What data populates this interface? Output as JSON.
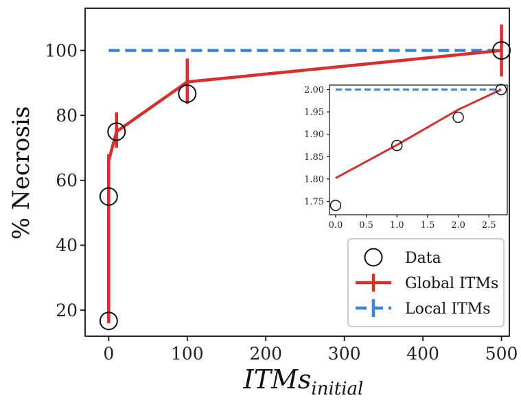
{
  "chart_data": [
    {
      "type": "line",
      "xlabel_main": "ITMs",
      "xlabel_sub": "initial",
      "ylabel": "% Necrosis",
      "xlim": [
        -30,
        510
      ],
      "ylim": [
        12,
        113
      ],
      "xticks": [
        0,
        100,
        200,
        300,
        400,
        500
      ],
      "yticks": [
        20,
        40,
        60,
        80,
        100
      ],
      "xtick_labels": [
        "0",
        "100",
        "200",
        "300",
        "400",
        "500"
      ],
      "ytick_labels": [
        "20",
        "40",
        "60",
        "80",
        "100"
      ],
      "legend_position": "lower-right",
      "series": [
        {
          "name": "Data",
          "style": "open-circle",
          "color": "#111111",
          "points": [
            [
              0,
              16.7
            ],
            [
              0,
              55
            ],
            [
              10,
              75
            ],
            [
              100,
              86.7
            ],
            [
              500,
              100
            ]
          ]
        },
        {
          "name": "Global ITMs",
          "style": "line-errorbar",
          "color": "#d62f2f",
          "points": [
            [
              0,
              16.7
            ],
            [
              0,
              66
            ],
            [
              10,
              75
            ],
            [
              100,
              90.3
            ],
            [
              500,
              100
            ]
          ],
          "errors": [
            {
              "x": 0,
              "lo": 16,
              "hi": 68
            },
            {
              "x": 10,
              "lo": 70,
              "hi": 81
            },
            {
              "x": 100,
              "lo": 83.5,
              "hi": 97.5
            },
            {
              "x": 500,
              "lo": 92,
              "hi": 108
            }
          ]
        },
        {
          "name": "Local ITMs",
          "style": "dashed",
          "color": "#3b85d6",
          "points": [
            [
              0,
              100
            ],
            [
              500,
              100
            ]
          ]
        }
      ]
    },
    {
      "type": "line",
      "inset": true,
      "xlim": [
        -0.1,
        2.8
      ],
      "ylim": [
        1.72,
        2.01
      ],
      "xticks": [
        0.0,
        0.5,
        1.0,
        1.5,
        2.0,
        2.5
      ],
      "yticks": [
        1.75,
        1.8,
        1.85,
        1.9,
        1.95,
        2.0
      ],
      "xtick_labels": [
        "0.0",
        "0.5",
        "1.0",
        "1.5",
        "2.0",
        "2.5"
      ],
      "ytick_labels": [
        "1.75",
        "1.80",
        "1.85",
        "1.90",
        "1.95",
        "2.00"
      ],
      "series": [
        {
          "name": "Data",
          "style": "open-circle",
          "color": "#111111",
          "points": [
            [
              0,
              1.741
            ],
            [
              1.0,
              1.875
            ],
            [
              2.0,
              1.938
            ],
            [
              2.7,
              2.0
            ]
          ]
        },
        {
          "name": "Global ITMs",
          "style": "line",
          "color": "#d62f2f",
          "points": [
            [
              0,
              1.802
            ],
            [
              1.0,
              1.876
            ],
            [
              2.0,
              1.955
            ],
            [
              2.7,
              2.0
            ]
          ]
        },
        {
          "name": "Local ITMs",
          "style": "dashed",
          "color": "#3b85d6",
          "points": [
            [
              0,
              2.0
            ],
            [
              2.7,
              2.0
            ]
          ]
        }
      ]
    }
  ],
  "legend": {
    "items": [
      {
        "label": "Data",
        "style": "open-circle",
        "color": "#111111"
      },
      {
        "label": "Global ITMs",
        "style": "line-errorbar",
        "color": "#d62f2f"
      },
      {
        "label": "Local ITMs",
        "style": "dashed",
        "color": "#3b85d6"
      }
    ]
  }
}
